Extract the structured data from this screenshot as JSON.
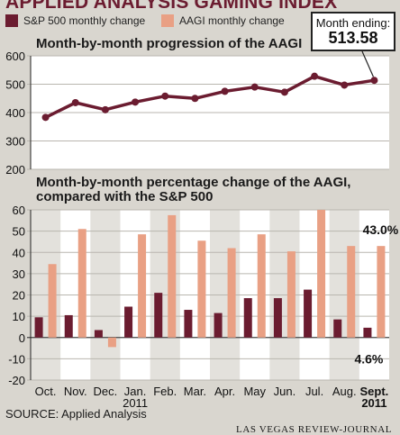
{
  "header": {
    "title": "APPLIED ANALYSIS GAMING INDEX"
  },
  "legend": [
    {
      "label": "S&P 500 monthly change",
      "color": "#6b1c30"
    },
    {
      "label": "AAGI monthly change",
      "color": "#e9a084"
    }
  ],
  "callout": {
    "label": "Month ending:",
    "value": "513.58"
  },
  "footer": {
    "source": "SOURCE: Applied Analysis",
    "credit": "LAS VEGAS REVIEW-JOURNAL"
  },
  "colors": {
    "background": "#d9d6cf",
    "panel": "#ffffff",
    "shade": "#e3e1dc",
    "sp500": "#6b1c30",
    "aagi": "#e9a084",
    "line": "#6b1c30"
  },
  "chart_data": [
    {
      "type": "line",
      "title": "Month-by-month progression of the AAGI",
      "categories": [
        "Oct.",
        "Nov.",
        "Dec.",
        "Jan.",
        "Feb.",
        "Mar.",
        "Apr.",
        "May",
        "Jun.",
        "Jul.",
        "Aug.",
        "Sept."
      ],
      "series": [
        {
          "values": [
            383,
            435,
            410,
            437,
            458,
            450,
            475,
            490,
            472,
            528,
            497,
            513.58
          ]
        }
      ],
      "ylim": [
        200,
        600
      ],
      "yticks": [
        "200",
        "300",
        "400",
        "500",
        "600"
      ],
      "grid": true
    },
    {
      "type": "bar",
      "title": "Month-by-month percentage change of the AAGI, compared with the S&P 500",
      "categories": [
        "Oct.",
        "Nov.",
        "Dec.",
        "Jan.",
        "Feb.",
        "Mar.",
        "Apr.",
        "May",
        "Jun.",
        "Jul.",
        "Aug.",
        "Sept."
      ],
      "sublabels": [
        "",
        "",
        "",
        "2011",
        "",
        "",
        "",
        "",
        "",
        "",
        "",
        "2011"
      ],
      "series": [
        {
          "name": "S&P 500 monthly change",
          "values": [
            9.5,
            10.5,
            3.5,
            14.5,
            21,
            13,
            11.5,
            18.5,
            18.5,
            22.5,
            8.5,
            4.6
          ]
        },
        {
          "name": "AAGI monthly change",
          "values": [
            34.5,
            51,
            -4.5,
            48.5,
            57.5,
            45.5,
            42,
            48.5,
            40.5,
            60,
            43,
            43.0
          ]
        }
      ],
      "ylim": [
        -20,
        60
      ],
      "yticks": [
        "-20",
        "-10",
        "0",
        "10",
        "20",
        "30",
        "40",
        "50",
        "60"
      ],
      "annotations": [
        "43.0%",
        "4.6%"
      ],
      "grid": true,
      "legend": "top"
    }
  ]
}
